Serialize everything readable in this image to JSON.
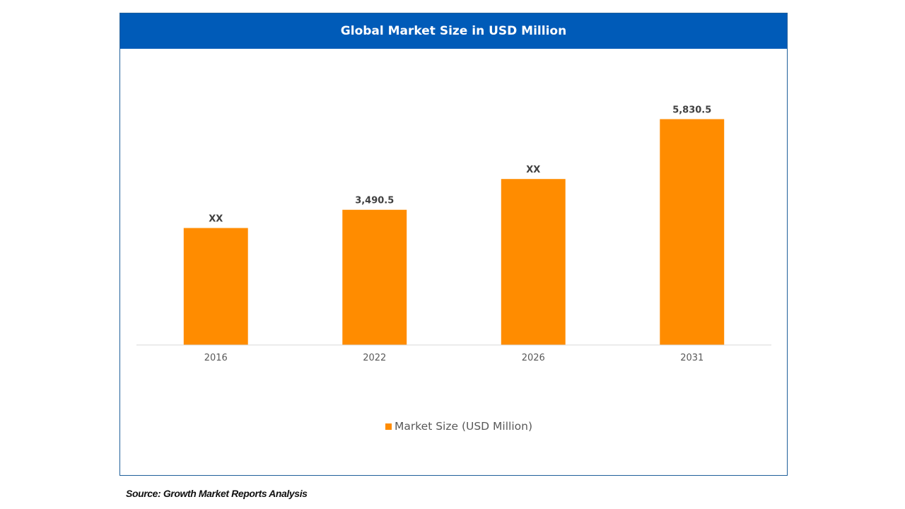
{
  "chart_data": {
    "type": "bar",
    "title": "Global Market Size in USD Million",
    "xlabel": "",
    "ylabel": "",
    "categories": [
      "2016",
      "2022",
      "2026",
      "2031"
    ],
    "series": [
      {
        "name": "Market Size (USD Million)",
        "values": [
          3020,
          3490.5,
          4285,
          5830.5
        ],
        "data_labels": [
          "XX",
          "3,490.5",
          "XX",
          "5,830.5"
        ],
        "color": "#ff8c00"
      }
    ],
    "ylim": [
      0,
      7300
    ],
    "grid": false,
    "legend": "bottom-center"
  },
  "source": "Source: Growth Market Reports Analysis",
  "colors": {
    "header_bg": "#005bb8",
    "bar": "#ff8c00",
    "label_text": "#404040",
    "axis_text": "#595959"
  }
}
